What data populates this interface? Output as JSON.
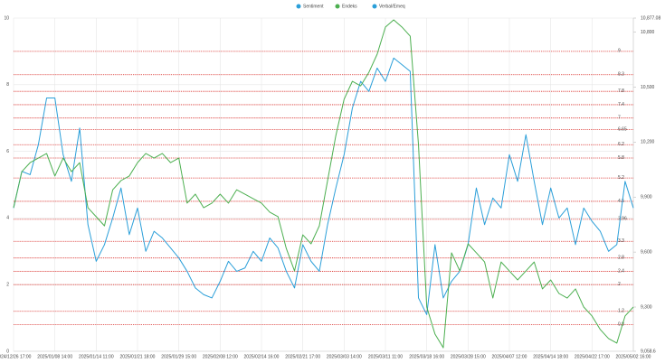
{
  "chart_data": {
    "type": "line",
    "legend": [
      {
        "label": "Sentiment",
        "color": "#2b9fd9"
      },
      {
        "label": "Endeks",
        "color": "#4caf50"
      },
      {
        "label": "Verbal/Emeq",
        "color": "#2b9fd9"
      }
    ],
    "categories": [
      "2024/12/26 17:00",
      null,
      null,
      null,
      null,
      "2025/01/08 14:00",
      null,
      null,
      null,
      null,
      "2025/01/14 11:00",
      null,
      null,
      null,
      null,
      "2025/01/21 18:00",
      null,
      null,
      null,
      null,
      "2025/01/29 15:00",
      null,
      null,
      null,
      null,
      "2025/02/08 12:00",
      null,
      null,
      null,
      null,
      "2025/02/14 16:00",
      null,
      null,
      null,
      null,
      "2025/02/21 17:00",
      null,
      null,
      null,
      null,
      "2025/03/03 14:00",
      null,
      null,
      null,
      null,
      "2025/03/11 11:00",
      null,
      null,
      null,
      null,
      "2025/03/18 16:00",
      null,
      null,
      null,
      null,
      "2025/03/28 15:00",
      null,
      null,
      null,
      null,
      "2025/04/07 12:00",
      null,
      null,
      null,
      null,
      "2025/04/14 18:00",
      null,
      null,
      null,
      null,
      "2025/04/22 17:00",
      null,
      null,
      null,
      null,
      "2025/05/02 16:00"
    ],
    "series": [
      {
        "color": "#2b9fd9",
        "axis": "y",
        "values": [
          4.3,
          5.4,
          5.3,
          6.2,
          7.6,
          7.6,
          5.9,
          5.1,
          6.7,
          3.8,
          2.7,
          3.2,
          4.0,
          4.9,
          3.5,
          4.3,
          3.0,
          3.6,
          3.4,
          3.1,
          2.8,
          2.4,
          1.9,
          1.7,
          1.6,
          2.1,
          2.7,
          2.4,
          2.5,
          3.0,
          2.7,
          3.4,
          3.1,
          2.4,
          1.9,
          3.2,
          2.7,
          2.4,
          3.8,
          4.9,
          5.9,
          7.3,
          8.1,
          7.8,
          8.5,
          8.1,
          8.8,
          8.6,
          8.4,
          1.6,
          1.1,
          3.2,
          1.6,
          2.1,
          2.4,
          3.2,
          4.9,
          3.8,
          4.6,
          4.3,
          5.9,
          5.1,
          6.5,
          5.1,
          3.8,
          4.9,
          4.0,
          4.3,
          3.2,
          4.3,
          3.9,
          3.6,
          3.0,
          3.2,
          5.1,
          4.3
        ]
      },
      {
        "color": "#4caf50",
        "axis": "y2",
        "values": [
          9842,
          10039,
          10088,
          10113,
          10138,
          10015,
          10113,
          10039,
          10088,
          9842,
          9793,
          9743,
          9940,
          9990,
          10015,
          10088,
          10138,
          10113,
          10138,
          10088,
          10113,
          9867,
          9916,
          9842,
          9867,
          9916,
          9867,
          9940,
          9916,
          9891,
          9867,
          9818,
          9793,
          9620,
          9497,
          9694,
          9645,
          9743,
          9990,
          10236,
          10434,
          10532,
          10507,
          10581,
          10680,
          10828,
          10867,
          10828,
          10778,
          10187,
          9300,
          9152,
          9078,
          9596,
          9497,
          9645,
          9596,
          9546,
          9349,
          9546,
          9497,
          9448,
          9497,
          9546,
          9399,
          9448,
          9374,
          9349,
          9399,
          9300,
          9251,
          9177,
          9128,
          9103,
          9251,
          9300
        ]
      }
    ],
    "ylim": [
      0,
      10
    ],
    "yticks": [
      0,
      2,
      4,
      6,
      8,
      10
    ],
    "y2lim": [
      9058.6,
      10877.08
    ],
    "y2ticks": [
      {
        "value": 9058.6,
        "label": "9,058.6"
      },
      {
        "value": 9300,
        "label": "9,300"
      },
      {
        "value": 9600,
        "label": "9,600"
      },
      {
        "value": 9900,
        "label": "9,900"
      },
      {
        "value": 10200,
        "label": "10,200"
      },
      {
        "value": 10500,
        "label": "10,500"
      },
      {
        "value": 10800,
        "label": "10,800"
      },
      {
        "value": 10877.08,
        "label": "10,877.08"
      }
    ],
    "thresholds": [
      9,
      8.3,
      7.8,
      7.4,
      7,
      6.65,
      6.2,
      5.8,
      5.2,
      4.5,
      3.96,
      3.3,
      2.8,
      2.4,
      2,
      1.2,
      0.8
    ],
    "threshold_color": "#d9302c",
    "grid": true
  }
}
